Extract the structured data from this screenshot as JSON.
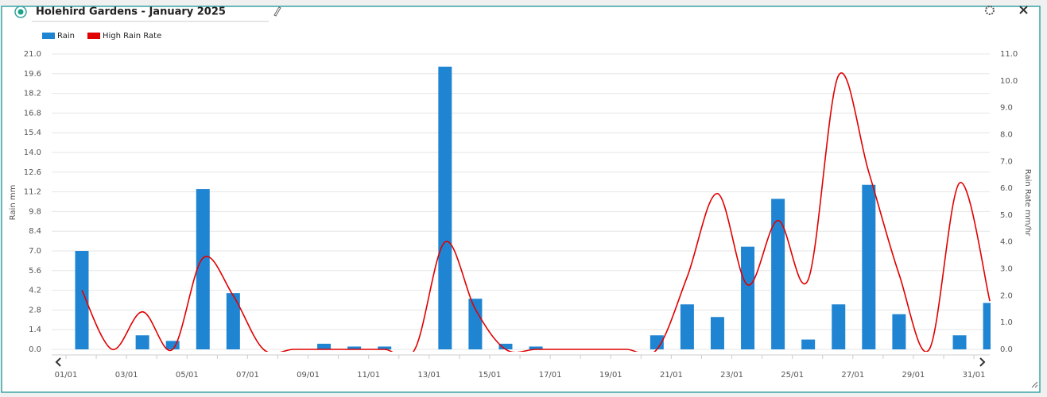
{
  "header": {
    "title": "Holehird Gardens - January 2025"
  },
  "chart_data": {
    "type": "bar-line",
    "categories": [
      "01/01",
      null,
      "03/01",
      null,
      "05/01",
      null,
      "07/01",
      null,
      "09/01",
      null,
      "11/01",
      null,
      "13/01",
      null,
      "15/01",
      null,
      "17/01",
      null,
      "19/01",
      null,
      "21/01",
      null,
      "23/01",
      null,
      "25/01",
      null,
      "27/01",
      null,
      "29/01",
      null,
      "31/01"
    ],
    "series": [
      {
        "name": "Rain",
        "type": "bar",
        "color": "#1f85d3",
        "values": [
          7.0,
          0,
          1.0,
          0.6,
          11.4,
          4.0,
          0,
          0,
          0.4,
          0.2,
          0.2,
          0,
          20.1,
          3.6,
          0.4,
          0.2,
          0,
          0,
          0,
          1.0,
          3.2,
          2.3,
          7.3,
          10.7,
          0.7,
          3.2,
          11.7,
          2.5,
          0,
          1.0,
          3.3
        ]
      },
      {
        "name": "High Rain Rate",
        "type": "line",
        "axis": "y2",
        "color": "#e00000",
        "values": [
          2.2,
          0,
          1.4,
          0,
          3.4,
          2.0,
          0,
          0,
          0,
          0,
          0,
          0,
          4.0,
          1.5,
          0,
          0,
          0,
          0,
          0,
          0,
          2.7,
          5.8,
          2.4,
          4.8,
          2.6,
          10.2,
          6.6,
          2.8,
          0,
          6.2,
          1.8
        ]
      }
    ],
    "ylabel": "Rain mm",
    "y2label": "Rain Rate mm/hr",
    "ylim": [
      0,
      21
    ],
    "yticks": [
      {
        "value": 0,
        "label": "0.0"
      },
      1.4,
      2.8,
      4.2,
      5.6,
      {
        "value": 7,
        "label": "7.0"
      },
      8.4,
      9.8,
      11.2,
      12.6,
      {
        "value": 14,
        "label": "14.0"
      },
      15.4,
      16.8,
      18.2,
      19.6,
      {
        "value": 21,
        "label": "21.0"
      }
    ],
    "y2lim": [
      0,
      11
    ],
    "y2ticks": [
      {
        "value": 0,
        "label": "0.0"
      },
      {
        "value": 1,
        "label": "1.0"
      },
      {
        "value": 2,
        "label": "2.0"
      },
      {
        "value": 3,
        "label": "3.0"
      },
      {
        "value": 4,
        "label": "4.0"
      },
      {
        "value": 5,
        "label": "5.0"
      },
      {
        "value": 6,
        "label": "6.0"
      },
      {
        "value": 7,
        "label": "7.0"
      },
      {
        "value": 8,
        "label": "8.0"
      },
      {
        "value": 9,
        "label": "9.0"
      },
      {
        "value": 10,
        "label": "10.0"
      },
      {
        "value": 11,
        "label": "11.0"
      }
    ],
    "grid": true,
    "legend": "top-left"
  }
}
